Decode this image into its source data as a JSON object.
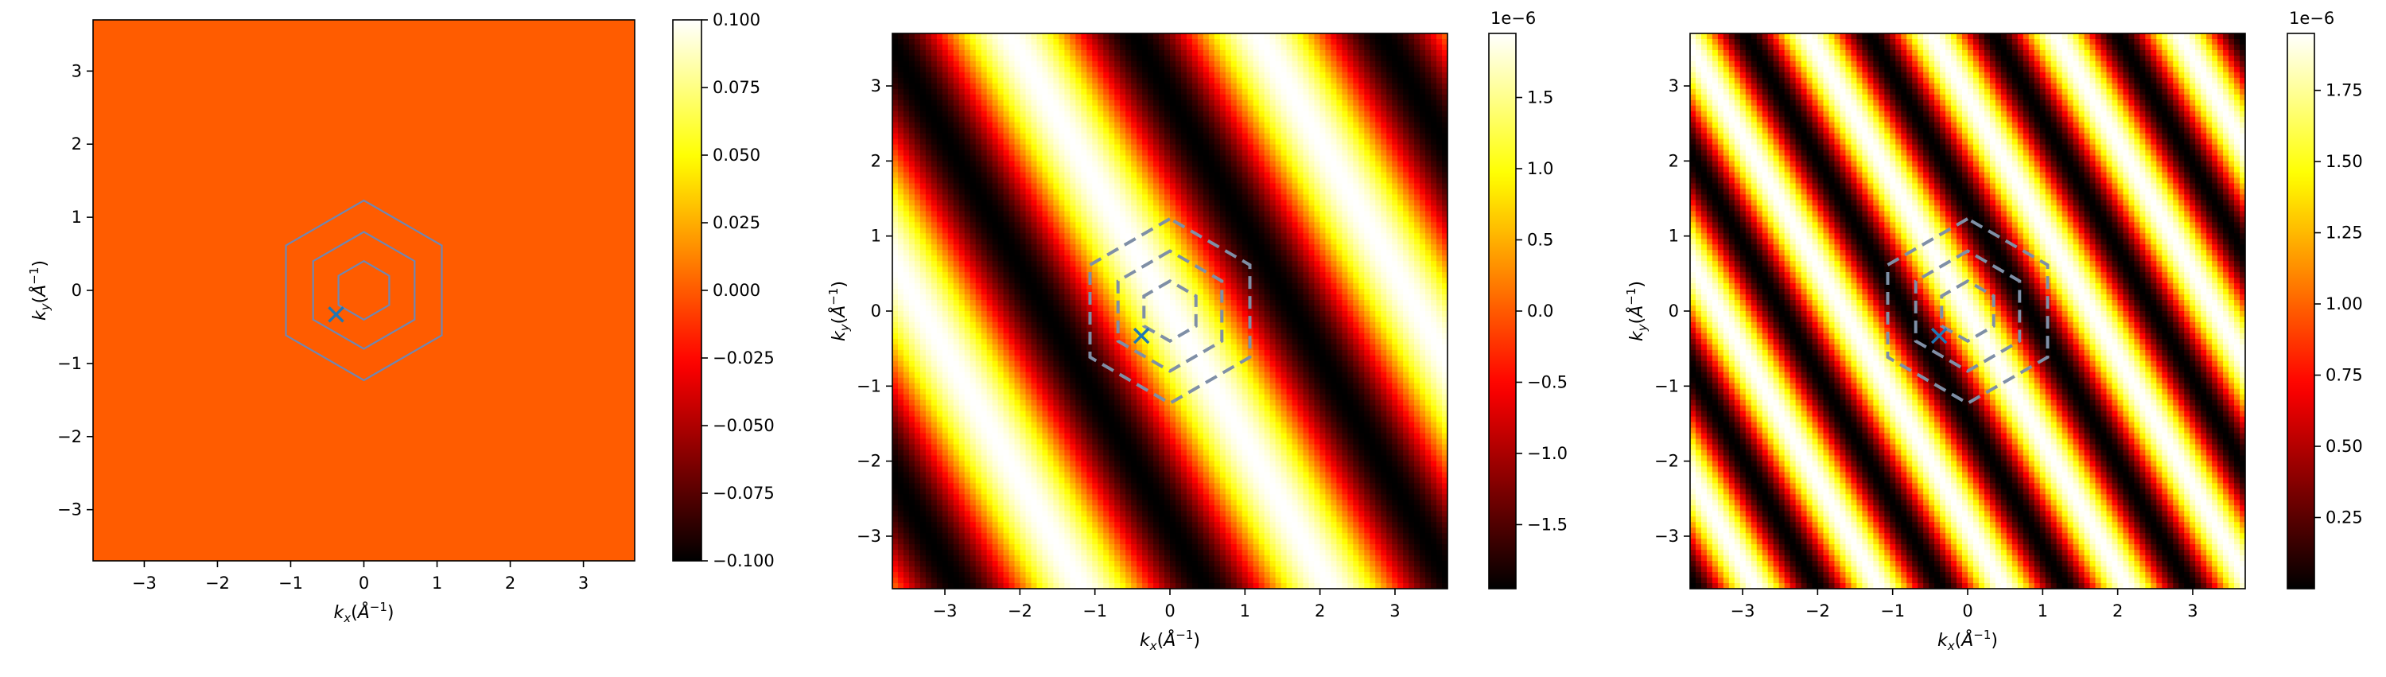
{
  "chart_data": [
    {
      "type": "heatmap",
      "title": "",
      "xlabel": "k_x(Å^-1)",
      "ylabel": "k_y(Å^-1)",
      "xlim": [
        -3.7,
        3.7
      ],
      "ylim": [
        -3.7,
        3.7
      ],
      "xticks": [
        -3,
        -2,
        -1,
        0,
        1,
        2,
        3
      ],
      "yticks": [
        -3,
        -2,
        -1,
        0,
        1,
        2,
        3
      ],
      "xtick_labels": [
        "−3",
        "−2",
        "−1",
        "0",
        "1",
        "2",
        "3"
      ],
      "ytick_labels": [
        "−3",
        "−2",
        "−1",
        "0",
        "1",
        "2",
        "3"
      ],
      "colormap": "hot",
      "field": {
        "kind": "constant",
        "value": 0.0,
        "color": "#ff5c00"
      },
      "colorbar": {
        "vmin": -0.1,
        "vmax": 0.1,
        "offset_label": "",
        "ticks": [
          -0.1,
          -0.075,
          -0.05,
          -0.025,
          0.0,
          0.025,
          0.05,
          0.075,
          0.1
        ],
        "tick_labels": [
          "−0.100",
          "−0.075",
          "−0.050",
          "−0.025",
          "0.000",
          "0.025",
          "0.050",
          "0.075",
          "0.100"
        ]
      },
      "hexagons": {
        "radii": [
          0.4,
          0.8,
          1.23
        ],
        "style": "solid",
        "color": "#6f87b3"
      },
      "marker": {
        "symbol": "x",
        "x": -0.38,
        "y": -0.33,
        "color": "#1f77b4"
      }
    },
    {
      "type": "heatmap",
      "title": "",
      "xlabel": "k_x(Å^-1)",
      "ylabel": "k_y(Å^-1)",
      "xlim": [
        -3.7,
        3.7
      ],
      "ylim": [
        -3.7,
        3.7
      ],
      "xticks": [
        -3,
        -2,
        -1,
        0,
        1,
        2,
        3
      ],
      "yticks": [
        -3,
        -2,
        -1,
        0,
        1,
        2,
        3
      ],
      "xtick_labels": [
        "−3",
        "−2",
        "−1",
        "0",
        "1",
        "2",
        "3"
      ],
      "ytick_labels": [
        "−3",
        "−2",
        "−1",
        "0",
        "1",
        "2",
        "3"
      ],
      "colormap": "hot",
      "field": {
        "kind": "plane_wave",
        "function": "cos",
        "amplitude": 1.95e-06,
        "offset": 0.0,
        "kx": 1.9,
        "ky": 1.1,
        "phase": 0.0
      },
      "colorbar": {
        "vmin": -1.95e-06,
        "vmax": 1.95e-06,
        "offset_label": "1e−6",
        "ticks": [
          -1.5e-06,
          -1e-06,
          -5e-07,
          0.0,
          5e-07,
          1e-06,
          1.5e-06
        ],
        "tick_labels": [
          "−1.5",
          "−1.0",
          "−0.5",
          "0.0",
          "0.5",
          "1.0",
          "1.5"
        ]
      },
      "hexagons": {
        "radii": [
          0.4,
          0.8,
          1.23
        ],
        "style": "dashed",
        "color": "#7f8fa6"
      },
      "marker": {
        "symbol": "x",
        "x": -0.38,
        "y": -0.33,
        "color": "#1f77b4"
      }
    },
    {
      "type": "heatmap",
      "title": "",
      "xlabel": "k_x(Å^-1)",
      "ylabel": "k_y(Å^-1)",
      "xlim": [
        -3.7,
        3.7
      ],
      "ylim": [
        -3.7,
        3.7
      ],
      "xticks": [
        -3,
        -2,
        -1,
        0,
        1,
        2,
        3
      ],
      "yticks": [
        -3,
        -2,
        -1,
        0,
        1,
        2,
        3
      ],
      "xtick_labels": [
        "−3",
        "−2",
        "−1",
        "0",
        "1",
        "2",
        "3"
      ],
      "ytick_labels": [
        "−3",
        "−2",
        "−1",
        "0",
        "1",
        "2",
        "3"
      ],
      "colormap": "hot",
      "field": {
        "kind": "plane_wave",
        "function": "cos",
        "amplitude": 9.75e-07,
        "offset": 9.75e-07,
        "kx": 3.8,
        "ky": 2.2,
        "phase": 0.0
      },
      "colorbar": {
        "vmin": 0.0,
        "vmax": 1.95e-06,
        "offset_label": "1e−6",
        "ticks": [
          2.5e-07,
          5e-07,
          7.5e-07,
          1e-06,
          1.25e-06,
          1.5e-06,
          1.75e-06
        ],
        "tick_labels": [
          "0.25",
          "0.50",
          "0.75",
          "1.00",
          "1.25",
          "1.50",
          "1.75"
        ]
      },
      "hexagons": {
        "radii": [
          0.4,
          0.8,
          1.23
        ],
        "style": "dashed",
        "color": "#7f8fa6"
      },
      "marker": {
        "symbol": "x",
        "x": -0.38,
        "y": -0.33,
        "color": "#1f77b4"
      }
    }
  ]
}
